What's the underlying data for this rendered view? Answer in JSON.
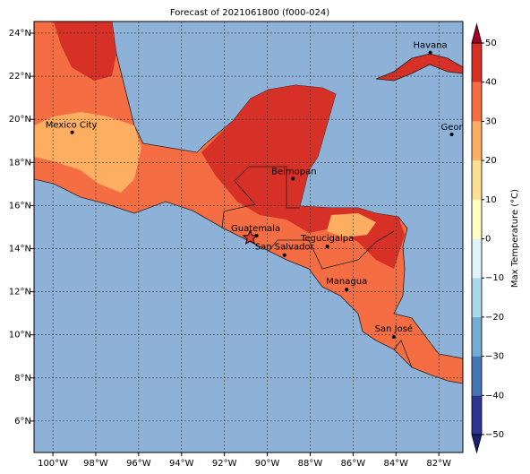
{
  "chart_data": {
    "type": "filled-contour-map",
    "title": "Forecast of 2021061800 (f000-024)",
    "xlim": [
      -100.88,
      -80.88
    ],
    "ylim": [
      4.54,
      24.54
    ],
    "xticks": [
      {
        "value": -100,
        "label": "100°W"
      },
      {
        "value": -98,
        "label": "98°W"
      },
      {
        "value": -96,
        "label": "96°W"
      },
      {
        "value": -94,
        "label": "94°W"
      },
      {
        "value": -92,
        "label": "92°W"
      },
      {
        "value": -90,
        "label": "90°W"
      },
      {
        "value": -88,
        "label": "88°W"
      },
      {
        "value": -86,
        "label": "86°W"
      },
      {
        "value": -84,
        "label": "84°W"
      },
      {
        "value": -82,
        "label": "82°W"
      }
    ],
    "yticks": [
      {
        "value": 6,
        "label": "6°N"
      },
      {
        "value": 8,
        "label": "8°N"
      },
      {
        "value": 10,
        "label": "10°N"
      },
      {
        "value": 12,
        "label": "12°N"
      },
      {
        "value": 14,
        "label": "14°N"
      },
      {
        "value": 16,
        "label": "16°N"
      },
      {
        "value": 18,
        "label": "18°N"
      },
      {
        "value": 20,
        "label": "20°N"
      },
      {
        "value": 22,
        "label": "22°N"
      },
      {
        "value": 24,
        "label": "24°N"
      }
    ],
    "grid": true,
    "cities": [
      "Havana",
      "Mexico City",
      "George Town",
      "Belmopan",
      "Guatemala",
      "San Salvador",
      "Tegucigalpa",
      "Managua",
      "San José"
    ],
    "colorbar": {
      "label": "Max Temperature (°C)",
      "lim": [
        -50,
        50
      ],
      "ticks": [
        {
          "value": -50,
          "label": "−50"
        },
        {
          "value": -40,
          "label": "−40"
        },
        {
          "value": -30,
          "label": "−30"
        },
        {
          "value": -20,
          "label": "−20"
        },
        {
          "value": -10,
          "label": "−10"
        },
        0,
        10,
        20,
        30,
        40,
        50
      ],
      "colors": [
        "#2c3494",
        "#4575b4",
        "#74add1",
        "#abd9e9",
        "#e0f3f8",
        "#ffffbf",
        "#fee090",
        "#fdae61",
        "#f46d43",
        "#d73027"
      ],
      "under_color": "#1a1f6e",
      "over_color": "#a50026"
    }
  }
}
